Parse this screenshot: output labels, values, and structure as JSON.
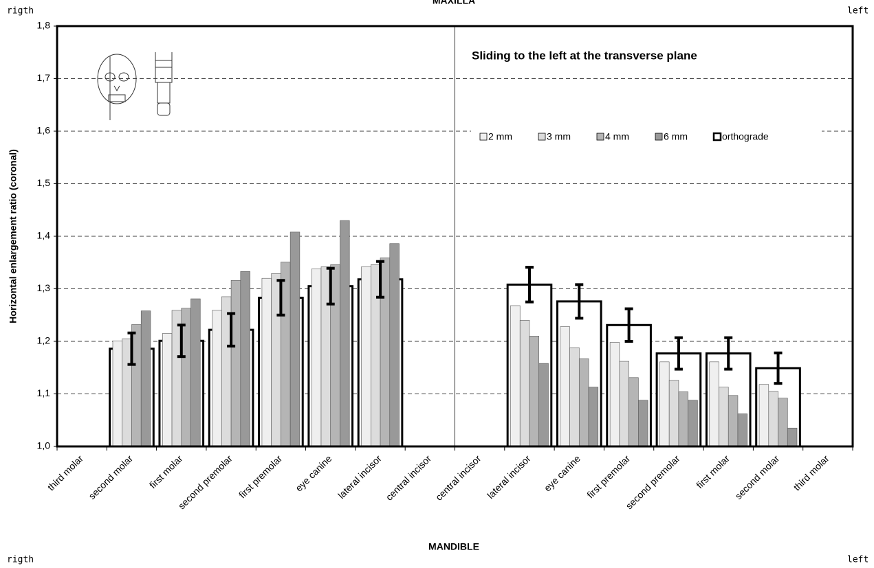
{
  "chart_data": {
    "type": "bar",
    "top_label": "MAXILLA",
    "bottom_label": "MANDIBLE",
    "corner_labels": [
      "rigth",
      "left",
      "rigth",
      "left"
    ],
    "title": "Sliding to the left at the transverse plane",
    "y_label": "Horizontal enlargement ratio (coronal)",
    "categories": [
      "third molar",
      "second molar",
      "first molar",
      "second premolar",
      "first premolar",
      "eye canine",
      "lateral incisor",
      "central incisor",
      "central incisor",
      "lateral incisor",
      "eye canine",
      "first premolar",
      "second premolar",
      "first molar",
      "second molar",
      "third molar"
    ],
    "series": [
      {
        "name": "2 mm",
        "color": "#efefef",
        "values": [
          null,
          1.201,
          1.215,
          1.259,
          1.32,
          1.338,
          1.342,
          null,
          null,
          1.268,
          1.228,
          1.198,
          1.161,
          1.161,
          1.118,
          null
        ]
      },
      {
        "name": "3 mm",
        "color": "#dcdcdc",
        "values": [
          null,
          1.205,
          1.259,
          1.285,
          1.329,
          1.342,
          1.346,
          null,
          null,
          1.24,
          1.188,
          1.162,
          1.126,
          1.113,
          1.105,
          null
        ]
      },
      {
        "name": "4 mm",
        "color": "#b5b5b5",
        "values": [
          null,
          1.232,
          1.263,
          1.316,
          1.351,
          1.346,
          1.359,
          null,
          null,
          1.21,
          1.167,
          1.131,
          1.104,
          1.097,
          1.092,
          null
        ]
      },
      {
        "name": "6 mm",
        "color": "#999999",
        "values": [
          null,
          1.258,
          1.281,
          1.333,
          1.408,
          1.43,
          1.386,
          null,
          null,
          1.158,
          1.113,
          1.088,
          1.088,
          1.062,
          1.035,
          null
        ]
      },
      {
        "name": "orthograde",
        "color": "#ffffff",
        "values": [
          null,
          1.186,
          1.201,
          1.222,
          1.283,
          1.305,
          1.318,
          null,
          null,
          1.308,
          1.276,
          1.231,
          1.177,
          1.177,
          1.149,
          null
        ],
        "errors": [
          null,
          0.03,
          0.03,
          0.031,
          0.033,
          0.034,
          0.034,
          null,
          null,
          0.033,
          0.032,
          0.031,
          0.03,
          0.03,
          0.029,
          null
        ]
      }
    ],
    "ylim": [
      1.0,
      1.8
    ],
    "yticks": [
      {
        "value": 1.0,
        "label": "1,0"
      },
      {
        "value": 1.1,
        "label": "1,1"
      },
      {
        "value": 1.2,
        "label": "1,2"
      },
      {
        "value": 1.3,
        "label": "1,3"
      },
      {
        "value": 1.4,
        "label": "1,4"
      },
      {
        "value": 1.5,
        "label": "1,5"
      },
      {
        "value": 1.6,
        "label": "1,6"
      },
      {
        "value": 1.7,
        "label": "1,7"
      },
      {
        "value": 1.8,
        "label": "1,8"
      }
    ],
    "grid": true
  }
}
